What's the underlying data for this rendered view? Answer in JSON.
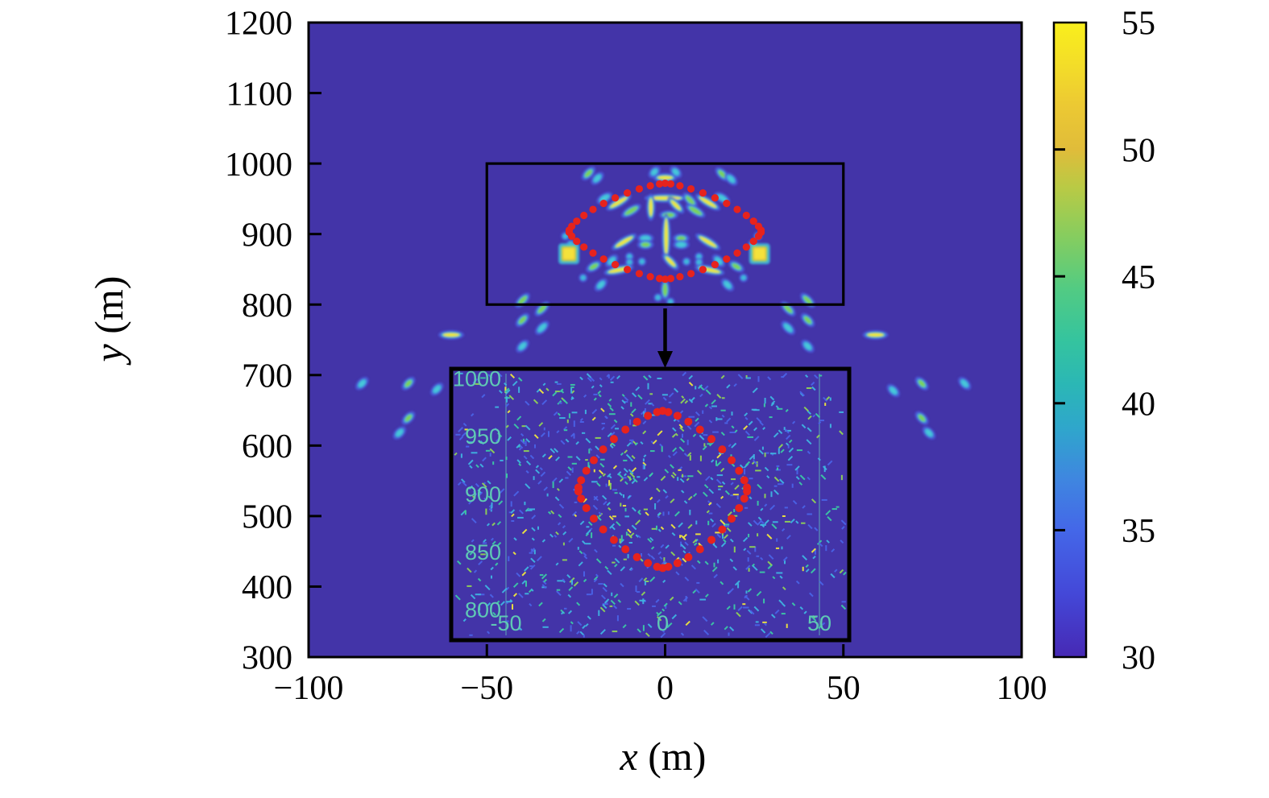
{
  "figure": {
    "background": "#ffffff",
    "heat_background": "#4334a8",
    "frame_color": "#000000",
    "blob_palette": {
      "halo_blue": "#4a5fe0",
      "ring_cyan": "#3fb8dc",
      "ring_green": "#7bd357",
      "core_yellow": "#f4e73b",
      "core_orange": "#f2c13c",
      "core_cyan": "#49c9d8"
    }
  },
  "chart_data": {
    "type": "heatmap",
    "title": "",
    "xlabel_var": "x",
    "xlabel_unit": " (m)",
    "ylabel_var": "y",
    "ylabel_unit": " (m)",
    "xlim": [
      -100,
      100
    ],
    "ylim": [
      300,
      1200
    ],
    "x_ticks": [
      -100,
      -50,
      0,
      50,
      100
    ],
    "x_tick_labels": [
      "−100",
      "−50",
      "0",
      "50",
      "100"
    ],
    "y_ticks": [
      1200,
      1100,
      1000,
      900,
      800,
      700,
      600,
      500,
      400,
      300
    ],
    "y_tick_labels": [
      "1200",
      "1100",
      "1000",
      "900",
      "800",
      "700",
      "600",
      "500",
      "400",
      "300"
    ],
    "grid": false,
    "colorbar": {
      "min": 30,
      "max": 55,
      "ticks": [
        55,
        50,
        45,
        40,
        35,
        30
      ],
      "tick_labels": [
        "55",
        "50",
        "45",
        "40",
        "35",
        "30"
      ],
      "inner_ticks": [
        35,
        40,
        45,
        50
      ],
      "stops": [
        [
          0.0,
          "#4629b4"
        ],
        [
          0.1,
          "#4448d8"
        ],
        [
          0.2,
          "#4467e8"
        ],
        [
          0.28,
          "#3f86e0"
        ],
        [
          0.36,
          "#2fa6cc"
        ],
        [
          0.43,
          "#2bb7b5"
        ],
        [
          0.5,
          "#35c49e"
        ],
        [
          0.58,
          "#52cb83"
        ],
        [
          0.66,
          "#84cd60"
        ],
        [
          0.74,
          "#b9ca45"
        ],
        [
          0.8,
          "#e0bc3a"
        ],
        [
          0.87,
          "#ecc933"
        ],
        [
          0.93,
          "#f3dc29"
        ],
        [
          1.0,
          "#f9ef1c"
        ]
      ]
    },
    "zoom_region": {
      "x": [
        -50,
        50
      ],
      "y": [
        800,
        1000
      ]
    },
    "inset": {
      "xlim": [
        -68,
        59
      ],
      "ylim": [
        793,
        1008
      ],
      "x_ticks": [
        -50,
        0,
        50
      ],
      "x_tick_labels": [
        "-50",
        "0",
        "50"
      ],
      "y_ticks": [
        1000,
        950,
        900,
        850,
        800
      ],
      "y_tick_labels": [
        "1000",
        "950",
        "900",
        "850",
        "800"
      ],
      "tick_color": "#5fc9b4",
      "grid_x": [
        -50,
        50
      ],
      "grid_color": "rgba(100,205,185,0.55)"
    },
    "contour": {
      "cx": 0,
      "cy": 904,
      "a": 27,
      "b": 68,
      "p": 1.4,
      "color": "#e6231d",
      "dots_main": 46,
      "dot_r_main": 4.6,
      "dots_inset": 42,
      "dot_r_inset": 5.0
    },
    "blobs": [
      {
        "x": -21.5,
        "y": 986,
        "a": -45,
        "l": 5,
        "c": "g"
      },
      {
        "x": -19,
        "y": 979,
        "a": -45,
        "l": 4,
        "c": "c"
      },
      {
        "x": 16,
        "y": 985,
        "a": 45,
        "l": 5,
        "c": "g"
      },
      {
        "x": 18.5,
        "y": 978,
        "a": 45,
        "l": 4,
        "c": "c"
      },
      {
        "x": 0,
        "y": 980,
        "a": 0,
        "l": 9,
        "c": "y"
      },
      {
        "x": -3,
        "y": 988,
        "a": -45,
        "l": 3,
        "c": "c"
      },
      {
        "x": 3,
        "y": 988,
        "a": 45,
        "l": 3,
        "c": "c"
      },
      {
        "x": 0,
        "y": 951,
        "a": 0,
        "l": 20,
        "c": "y"
      },
      {
        "x": -4,
        "y": 938,
        "a": 90,
        "l": 11,
        "c": "y"
      },
      {
        "x": 3,
        "y": 941,
        "a": 45,
        "l": 8,
        "c": "y"
      },
      {
        "x": 1,
        "y": 927,
        "a": 0,
        "l": 6,
        "c": "g"
      },
      {
        "x": 7,
        "y": 948,
        "a": 45,
        "l": 6,
        "c": "g"
      },
      {
        "x": -13,
        "y": 945,
        "a": -31,
        "l": 12,
        "c": "y"
      },
      {
        "x": -9.5,
        "y": 933,
        "a": -31,
        "l": 8,
        "c": "g"
      },
      {
        "x": -17,
        "y": 951,
        "a": -31,
        "l": 5,
        "c": "c"
      },
      {
        "x": 12,
        "y": 945,
        "a": 31,
        "l": 12,
        "c": "y"
      },
      {
        "x": 8.5,
        "y": 933,
        "a": 31,
        "l": 8,
        "c": "g"
      },
      {
        "x": 16,
        "y": 951,
        "a": 31,
        "l": 5,
        "c": "c"
      },
      {
        "x": -28,
        "y": 897,
        "t": "dot"
      },
      {
        "x": -26.5,
        "y": 886,
        "t": "dot"
      },
      {
        "x": 26,
        "y": 897,
        "t": "dot"
      },
      {
        "x": 24.5,
        "y": 886,
        "t": "dot"
      },
      {
        "x": -27,
        "y": 872,
        "t": "sq",
        "l": 8,
        "c": "o"
      },
      {
        "x": 26.5,
        "y": 872,
        "t": "sq",
        "l": 8,
        "c": "o"
      },
      {
        "x": -11.5,
        "y": 889,
        "a": -31,
        "l": 12,
        "c": "y"
      },
      {
        "x": -5.5,
        "y": 894,
        "a": 0,
        "l": 4.5,
        "c": "c"
      },
      {
        "x": -5.5,
        "y": 885,
        "a": 0,
        "l": 4.5,
        "c": "g"
      },
      {
        "x": 0.3,
        "y": 896,
        "a": 90,
        "l": 23,
        "c": "y"
      },
      {
        "x": 4.5,
        "y": 894,
        "a": 0,
        "l": 4.5,
        "c": "g"
      },
      {
        "x": 4.5,
        "y": 885,
        "a": 0,
        "l": 4.5,
        "c": "c"
      },
      {
        "x": 12,
        "y": 889,
        "a": 31,
        "l": 12,
        "c": "y"
      },
      {
        "x": -10,
        "y": 868,
        "t": "dot"
      },
      {
        "x": -10,
        "y": 860,
        "t": "dot"
      },
      {
        "x": 9.5,
        "y": 868,
        "t": "dot"
      },
      {
        "x": 9.5,
        "y": 860,
        "t": "dot"
      },
      {
        "x": -6.5,
        "y": 861,
        "t": "dot"
      },
      {
        "x": 6,
        "y": 861,
        "t": "dot"
      },
      {
        "x": -15,
        "y": 862,
        "a": -45,
        "l": 4,
        "c": "c"
      },
      {
        "x": 15,
        "y": 862,
        "a": 45,
        "l": 4,
        "c": "c"
      },
      {
        "x": 1.5,
        "y": 861,
        "a": 45,
        "l": 8,
        "c": "y"
      },
      {
        "x": -13,
        "y": 849,
        "a": -12,
        "l": 13,
        "c": "y"
      },
      {
        "x": 12.5,
        "y": 849,
        "a": 12,
        "l": 13,
        "c": "y"
      },
      {
        "x": -20,
        "y": 854,
        "a": -31,
        "l": 5,
        "c": "g"
      },
      {
        "x": 20,
        "y": 854,
        "a": 31,
        "l": 5,
        "c": "g"
      },
      {
        "x": -23,
        "y": 838,
        "t": "dot"
      },
      {
        "x": -18,
        "y": 828,
        "a": -45,
        "l": 4,
        "c": "c"
      },
      {
        "x": 22,
        "y": 838,
        "t": "dot"
      },
      {
        "x": 17.5,
        "y": 828,
        "a": 45,
        "l": 4,
        "c": "c"
      },
      {
        "x": 0,
        "y": 821,
        "a": 90,
        "l": 7,
        "c": "g"
      },
      {
        "x": -2,
        "y": 810,
        "t": "dot"
      },
      {
        "x": 1.5,
        "y": 804,
        "t": "dot"
      },
      {
        "x": -40,
        "y": 806,
        "a": -45,
        "l": 6,
        "c": "g"
      },
      {
        "x": -34.5,
        "y": 794,
        "a": -45,
        "l": 6,
        "c": "g"
      },
      {
        "x": -40,
        "y": 778,
        "a": -45,
        "l": 5,
        "c": "g"
      },
      {
        "x": -34.5,
        "y": 767,
        "a": -45,
        "l": 5,
        "c": "c"
      },
      {
        "x": -40,
        "y": 741,
        "a": -45,
        "l": 4,
        "c": "c"
      },
      {
        "x": 40,
        "y": 806,
        "a": 45,
        "l": 6,
        "c": "g"
      },
      {
        "x": 34.5,
        "y": 794,
        "a": 45,
        "l": 6,
        "c": "g"
      },
      {
        "x": 40,
        "y": 778,
        "a": 45,
        "l": 5,
        "c": "g"
      },
      {
        "x": 34.5,
        "y": 767,
        "a": 45,
        "l": 5,
        "c": "c"
      },
      {
        "x": 40,
        "y": 741,
        "a": 45,
        "l": 4,
        "c": "c"
      },
      {
        "x": -60,
        "y": 757,
        "a": 0,
        "l": 10,
        "c": "y"
      },
      {
        "x": 59,
        "y": 757,
        "a": 0,
        "l": 10,
        "c": "y"
      },
      {
        "x": -85,
        "y": 688,
        "a": -45,
        "l": 4,
        "c": "c"
      },
      {
        "x": -72,
        "y": 688,
        "a": -45,
        "l": 4.5,
        "c": "g"
      },
      {
        "x": -64,
        "y": 680,
        "a": -45,
        "l": 4,
        "c": "c"
      },
      {
        "x": -72,
        "y": 639,
        "a": -45,
        "l": 4.5,
        "c": "g"
      },
      {
        "x": -74.5,
        "y": 618,
        "a": -45,
        "l": 4,
        "c": "c"
      },
      {
        "x": 84,
        "y": 688,
        "a": 45,
        "l": 4,
        "c": "c"
      },
      {
        "x": 72,
        "y": 688,
        "a": 45,
        "l": 4.5,
        "c": "g"
      },
      {
        "x": 64,
        "y": 678,
        "a": 45,
        "l": 4,
        "c": "c"
      },
      {
        "x": 72,
        "y": 639,
        "a": 45,
        "l": 4.5,
        "c": "g"
      },
      {
        "x": 74,
        "y": 618,
        "a": 45,
        "l": 4,
        "c": "c"
      }
    ],
    "inset_scatter": {
      "seed": 1337,
      "count": 1500,
      "len_min": 3.5,
      "len_max": 8,
      "thickness": 2,
      "angles": [
        -45,
        45,
        -45,
        45,
        0,
        90
      ],
      "colors": {
        "blue": "#4a63e6",
        "cyan": "#3fb4e0",
        "teal": "#3cc9a4",
        "green": "#8fd356",
        "yellow": "#f0e73c"
      },
      "weights_inside": {
        "blue": 0.18,
        "cyan": 0.2,
        "teal": 0.22,
        "green": 0.22,
        "yellow": 0.18
      },
      "weights_outside": {
        "blue": 0.34,
        "cyan": 0.3,
        "teal": 0.2,
        "green": 0.12,
        "yellow": 0.04
      }
    }
  }
}
